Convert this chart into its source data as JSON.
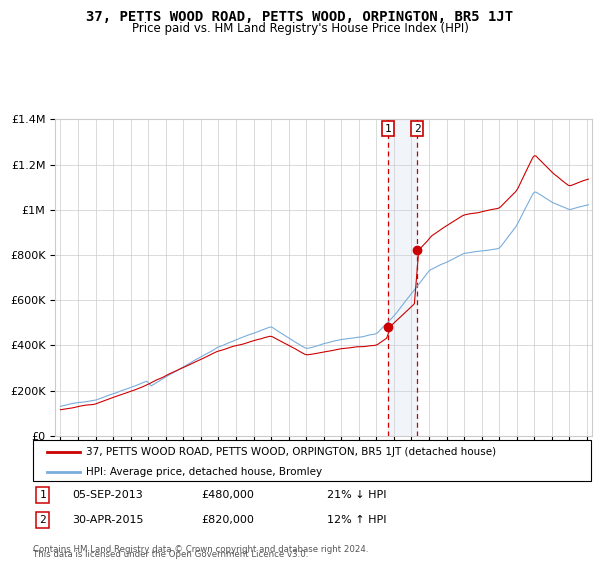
{
  "title": "37, PETTS WOOD ROAD, PETTS WOOD, ORPINGTON, BR5 1JT",
  "subtitle": "Price paid vs. HM Land Registry's House Price Index (HPI)",
  "legend_line1": "37, PETTS WOOD ROAD, PETTS WOOD, ORPINGTON, BR5 1JT (detached house)",
  "legend_line2": "HPI: Average price, detached house, Bromley",
  "footnote1": "Contains HM Land Registry data © Crown copyright and database right 2024.",
  "footnote2": "This data is licensed under the Open Government Licence v3.0.",
  "transaction1_label": "1",
  "transaction1_date": "05-SEP-2013",
  "transaction1_price": "£480,000",
  "transaction1_hpi": "21% ↓ HPI",
  "transaction2_label": "2",
  "transaction2_date": "30-APR-2015",
  "transaction2_price": "£820,000",
  "transaction2_hpi": "12% ↑ HPI",
  "red_color": "#cc0000",
  "blue_color": "#7aaddc",
  "vline_color": "#cc0000",
  "vline_shade": "#c8d8ee",
  "ylim": [
    0,
    1400000
  ],
  "yticks": [
    0,
    200000,
    400000,
    600000,
    800000,
    1000000,
    1200000,
    1400000
  ],
  "ytick_labels": [
    "£0",
    "£200K",
    "£400K",
    "£600K",
    "£800K",
    "£1M",
    "£1.2M",
    "£1.4M"
  ],
  "t1_x": 2013.67,
  "t1_y": 480000,
  "t2_x": 2015.33,
  "t2_y": 820000,
  "xmin": 1995,
  "xmax": 2025
}
